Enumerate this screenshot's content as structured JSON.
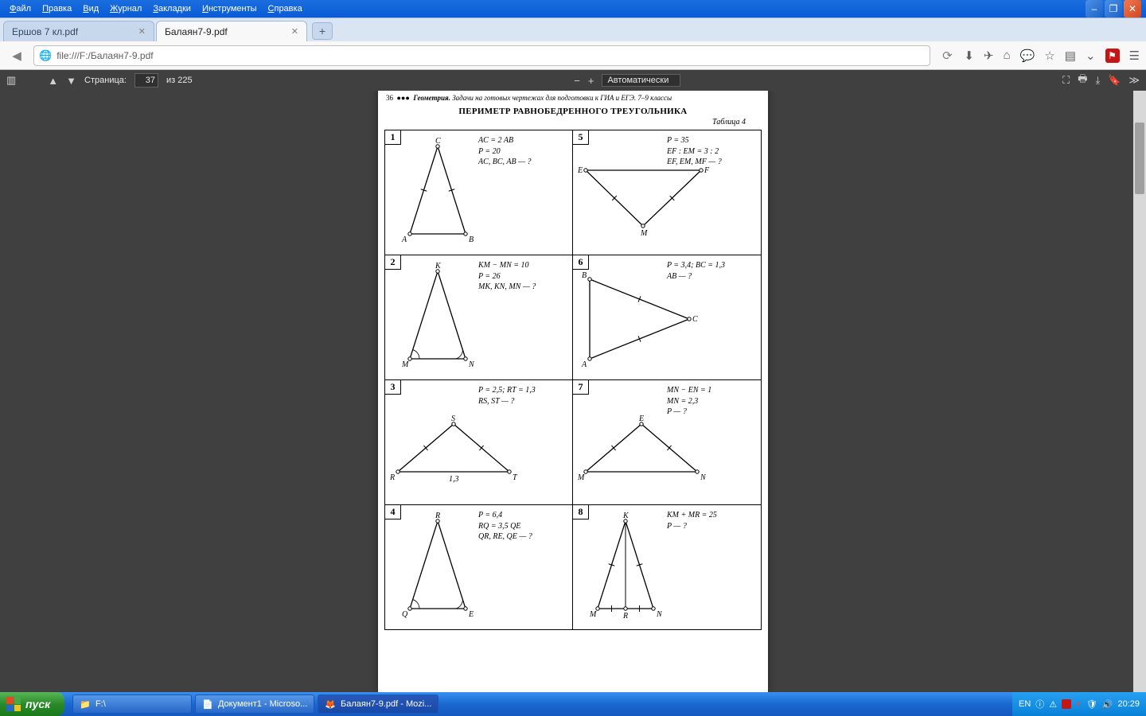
{
  "window": {
    "menus": [
      "Файл",
      "Правка",
      "Вид",
      "Журнал",
      "Закладки",
      "Инструменты",
      "Справка"
    ],
    "tabs": [
      {
        "title": "Ершов 7 кл.pdf",
        "active": false
      },
      {
        "title": "Балаян7-9.pdf",
        "active": true
      }
    ],
    "url": "file:///F:/Балаян7-9.pdf"
  },
  "pdfbar": {
    "page_label": "Страница:",
    "page_current": "37",
    "page_of": "из 225",
    "zoom_mode": "Автоматически"
  },
  "page": {
    "header_num": "36",
    "header_text": "Геометрия. Задачи на готовых чертежах для подготовки к ГИА и ЕГЭ. 7–9 классы",
    "title": "ПЕРИМЕТР РАВНОБЕДРЕННОГО ТРЕУГОЛЬНИКА",
    "subtitle": "Таблица 4",
    "problems": [
      {
        "n": "1",
        "cond": [
          "AC = 2 AB",
          "P = 20",
          "AC, BC, AB — ?"
        ],
        "labels": [
          "A",
          "B",
          "C"
        ],
        "tick": "sides",
        "shape": "tall_up"
      },
      {
        "n": "5",
        "cond": [
          "P = 35",
          "EF : EM = 3 : 2",
          "EF, EM, MF — ?"
        ],
        "labels": [
          "E",
          "F",
          "M"
        ],
        "tick": "sides",
        "shape": "down"
      },
      {
        "n": "2",
        "cond": [
          "KM − MN = 10",
          "P = 26",
          "MK, KN, MN — ?"
        ],
        "labels": [
          "M",
          "N",
          "K"
        ],
        "tick": "angles",
        "shape": "tall_up"
      },
      {
        "n": "6",
        "cond": [
          "P = 3,4;  BC = 1,3",
          "AB — ?"
        ],
        "labels": [
          "A",
          "B",
          "C"
        ],
        "tick": "sides",
        "shape": "right"
      },
      {
        "n": "3",
        "cond": [
          "P = 2,5;  RT = 1,3",
          "RS, ST — ?"
        ],
        "labels": [
          "R",
          "T",
          "S"
        ],
        "tick": "sides",
        "shape": "flat_up",
        "base": "1,3"
      },
      {
        "n": "7",
        "cond": [
          "MN − EN = 1",
          "MN = 2,3",
          "P — ?"
        ],
        "labels": [
          "M",
          "N",
          "E"
        ],
        "tick": "sides",
        "shape": "flat_up"
      },
      {
        "n": "4",
        "cond": [
          "P = 6,4",
          "RQ = 3,5 QE",
          "QR, RE, QE — ?"
        ],
        "labels": [
          "Q",
          "E",
          "R"
        ],
        "tick": "angles",
        "shape": "tall_up"
      },
      {
        "n": "8",
        "cond": [
          "KM + MR = 25",
          "P — ?"
        ],
        "labels": [
          "M",
          "N",
          "K"
        ],
        "tick": "sides_median",
        "shape": "tall_up_median",
        "median_label": "R"
      }
    ]
  },
  "taskbar": {
    "start": "пуск",
    "buttons": [
      {
        "label": "F:\\",
        "icon": "📁"
      },
      {
        "label": "Документ1 - Microso...",
        "icon": "📄"
      },
      {
        "label": "Балаян7-9.pdf - Mozi...",
        "icon": "🦊",
        "active": true
      }
    ],
    "lang": "EN",
    "time": "20:29"
  },
  "colors": {
    "titlebar": "#0a5bd6",
    "pdfbg": "#404040",
    "page": "#ffffff",
    "line": "#000000"
  }
}
